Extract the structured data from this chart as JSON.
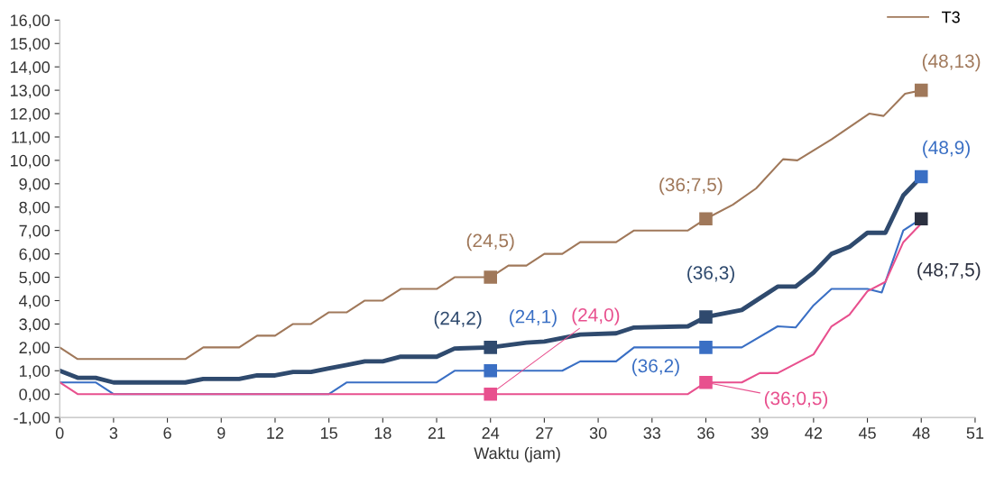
{
  "chart_data": {
    "type": "line",
    "xlabel": "Waktu (jam)",
    "xlim": [
      0,
      51
    ],
    "ylim": [
      -1,
      16
    ],
    "xticks": [
      0,
      3,
      6,
      9,
      12,
      15,
      18,
      21,
      24,
      27,
      30,
      33,
      36,
      39,
      42,
      45,
      48,
      51
    ],
    "yticks": [
      {
        "value": -1,
        "label": "-1,00"
      },
      {
        "value": 0,
        "label": "0,00"
      },
      {
        "value": 1,
        "label": "1,00"
      },
      {
        "value": 2,
        "label": "2,00"
      },
      {
        "value": 3,
        "label": "3,00"
      },
      {
        "value": 4,
        "label": "4,00"
      },
      {
        "value": 5,
        "label": "5,00"
      },
      {
        "value": 6,
        "label": "6,00"
      },
      {
        "value": 7,
        "label": "7,00"
      },
      {
        "value": 8,
        "label": "8,00"
      },
      {
        "value": 9,
        "label": "9,00"
      },
      {
        "value": 10,
        "label": "10,00"
      },
      {
        "value": 11,
        "label": "11,00"
      },
      {
        "value": 12,
        "label": "12,00"
      },
      {
        "value": 13,
        "label": "13,00"
      },
      {
        "value": 14,
        "label": "14,00"
      },
      {
        "value": 15,
        "label": "15,00"
      },
      {
        "value": 16,
        "label": "16,00"
      }
    ],
    "grid": false,
    "legend": "top right",
    "marker": "none",
    "line_style": "solid",
    "series": [
      {
        "name": "T3",
        "color": "#a0785a",
        "x": [
          0,
          1,
          7,
          7.5,
          8,
          10,
          11,
          12,
          13,
          14,
          15,
          16,
          17,
          18,
          19,
          21,
          22,
          24,
          25,
          26,
          27,
          28,
          29,
          31,
          32,
          35,
          36,
          37.5,
          38.8,
          40.3,
          41.1,
          43,
          45.1,
          45.9,
          47.1,
          48
        ],
        "values": [
          2.0,
          1.5,
          1.5,
          1.75,
          2.0,
          2.0,
          2.5,
          2.5,
          3.0,
          3.0,
          3.5,
          3.5,
          4.0,
          4.0,
          4.5,
          4.5,
          5.0,
          5.0,
          5.5,
          5.5,
          6.0,
          6.0,
          6.5,
          6.5,
          7.0,
          7.0,
          7.5,
          8.1,
          8.8,
          10.05,
          10.0,
          10.9,
          12.0,
          11.9,
          12.85,
          13.0
        ]
      },
      {
        "color": "#2f4a6e",
        "x": [
          0,
          1,
          2,
          3,
          7,
          8,
          10,
          11,
          12,
          13,
          14,
          15,
          16,
          17,
          18,
          19,
          21,
          22,
          24,
          26,
          27,
          29,
          31,
          32,
          35,
          36,
          38,
          39,
          40,
          41,
          42,
          43,
          44,
          45,
          46,
          47,
          48
        ],
        "values": [
          1.0,
          0.7,
          0.7,
          0.5,
          0.5,
          0.65,
          0.65,
          0.8,
          0.8,
          0.95,
          0.95,
          1.1,
          1.25,
          1.4,
          1.4,
          1.6,
          1.6,
          1.95,
          2.0,
          2.2,
          2.25,
          2.55,
          2.6,
          2.85,
          2.9,
          3.3,
          3.6,
          4.1,
          4.6,
          4.6,
          5.2,
          6.0,
          6.3,
          6.9,
          6.9,
          8.5,
          9.3
        ]
      },
      {
        "color": "#3a6fc4",
        "x": [
          0,
          2,
          3,
          15,
          16,
          21,
          22,
          28,
          29,
          31,
          32,
          38,
          40,
          41,
          42,
          43,
          45,
          45.8,
          47,
          48
        ],
        "values": [
          0.5,
          0.5,
          0.0,
          0.0,
          0.5,
          0.5,
          1.0,
          1.0,
          1.4,
          1.4,
          2.0,
          2.0,
          2.9,
          2.85,
          3.8,
          4.5,
          4.5,
          4.35,
          7.0,
          7.5
        ]
      },
      {
        "color": "#e8508e",
        "x": [
          0,
          1,
          35,
          36,
          38,
          39,
          40,
          42,
          43,
          44,
          45,
          46,
          47,
          48
        ],
        "values": [
          0.5,
          0.0,
          0.0,
          0.5,
          0.5,
          0.9,
          0.9,
          1.7,
          2.9,
          3.4,
          4.4,
          4.8,
          6.5,
          7.3
        ]
      },
      {
        "type": "scatter",
        "marker": "square",
        "x": [
          24,
          36,
          48,
          24,
          36,
          48,
          24,
          36,
          48,
          24,
          36
        ],
        "values": [
          5,
          7.5,
          13,
          2,
          3.3,
          9.3,
          1,
          2,
          7.5,
          0,
          0.5
        ],
        "colors": [
          "#a0785a",
          "#a0785a",
          "#a0785a",
          "#2f4a6e",
          "#2f4a6e",
          "#3a6fc4",
          "#3a6fc4",
          "#3a6fc4",
          "#2b3040",
          "#e8508e",
          "#e8508e"
        ]
      }
    ],
    "annotations": [
      {
        "text": "(24,5)",
        "x": 24,
        "y": 5
      },
      {
        "text": "(36;7,5)",
        "x": 36,
        "y": 7.5
      },
      {
        "text": "(48,13)",
        "x": 48,
        "y": 13
      },
      {
        "text": "(24,2)",
        "x": 24,
        "y": 2
      },
      {
        "text": "(24,1)",
        "x": 24,
        "y": 1
      },
      {
        "text": "(24,0)",
        "x": 24,
        "y": 0
      },
      {
        "text": "(36,3)",
        "x": 36,
        "y": 3.3
      },
      {
        "text": "(36,2)",
        "x": 36,
        "y": 2
      },
      {
        "text": "(36;0,5)",
        "x": 36,
        "y": 0.5
      },
      {
        "text": "(48,9)",
        "x": 48,
        "y": 9.3
      },
      {
        "text": "(48;7,5)",
        "x": 48,
        "y": 7.5
      }
    ]
  }
}
